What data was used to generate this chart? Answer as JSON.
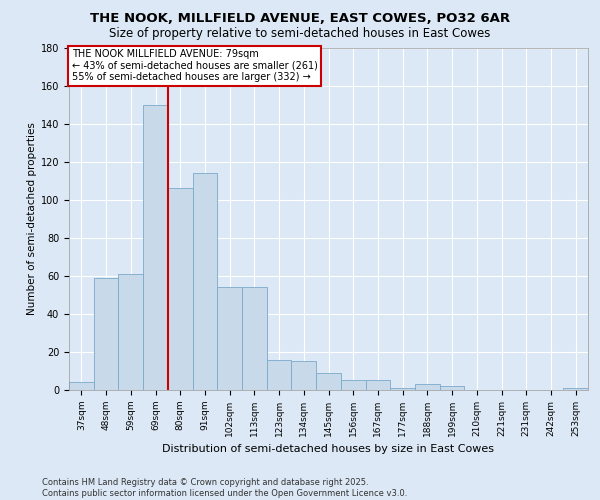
{
  "title": "THE NOOK, MILLFIELD AVENUE, EAST COWES, PO32 6AR",
  "subtitle": "Size of property relative to semi-detached houses in East Cowes",
  "xlabel": "Distribution of semi-detached houses by size in East Cowes",
  "ylabel": "Number of semi-detached properties",
  "categories": [
    "37sqm",
    "48sqm",
    "59sqm",
    "69sqm",
    "80sqm",
    "91sqm",
    "102sqm",
    "113sqm",
    "123sqm",
    "134sqm",
    "145sqm",
    "156sqm",
    "167sqm",
    "177sqm",
    "188sqm",
    "199sqm",
    "210sqm",
    "221sqm",
    "231sqm",
    "242sqm",
    "253sqm"
  ],
  "values": [
    4,
    59,
    61,
    150,
    106,
    114,
    54,
    54,
    16,
    15,
    9,
    5,
    5,
    1,
    3,
    2,
    0,
    0,
    0,
    0,
    1
  ],
  "bar_color": "#c8d9ea",
  "bar_edge_color": "#7aaaca",
  "property_line_color": "#cc0000",
  "annotation_text": "THE NOOK MILLFIELD AVENUE: 79sqm\n← 43% of semi-detached houses are smaller (261)\n55% of semi-detached houses are larger (332) →",
  "annotation_box_color": "#ffffff",
  "annotation_box_edge": "#cc0000",
  "ylim": [
    0,
    180
  ],
  "yticks": [
    0,
    20,
    40,
    60,
    80,
    100,
    120,
    140,
    160,
    180
  ],
  "background_color": "#dce8f5",
  "fig_background_color": "#dce8f5",
  "grid_color": "#ffffff",
  "footer": "Contains HM Land Registry data © Crown copyright and database right 2025.\nContains public sector information licensed under the Open Government Licence v3.0.",
  "title_fontsize": 9.5,
  "subtitle_fontsize": 8.5,
  "xlabel_fontsize": 8,
  "ylabel_fontsize": 7.5,
  "tick_fontsize": 6.5,
  "annotation_fontsize": 7,
  "footer_fontsize": 6
}
